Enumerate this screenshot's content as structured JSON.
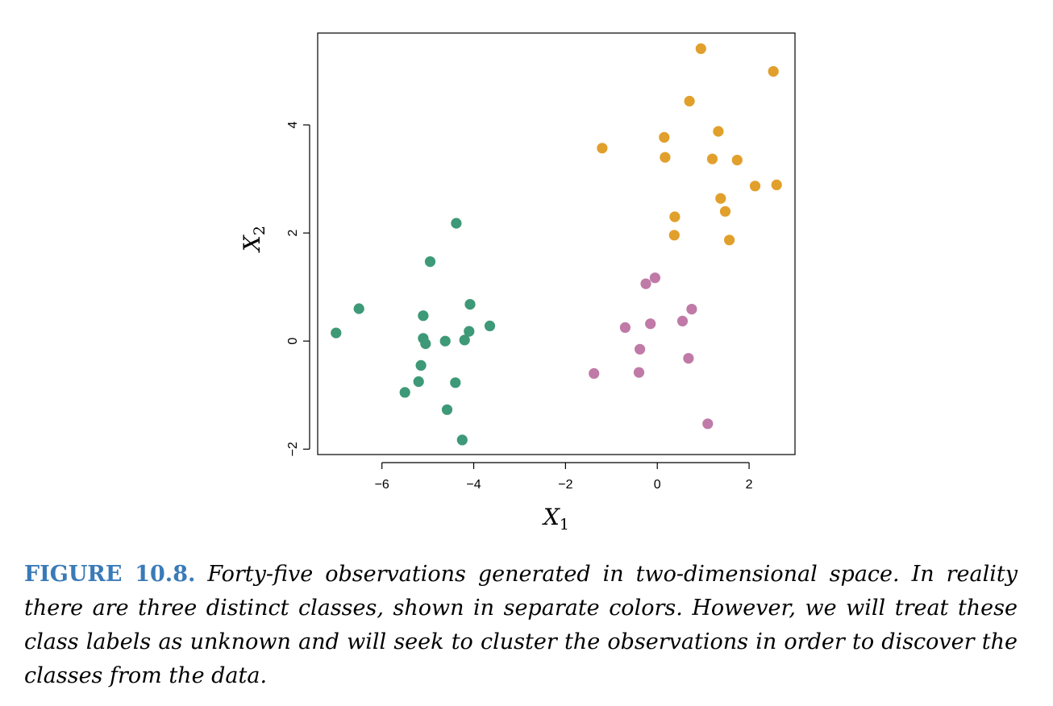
{
  "figure": {
    "label": "FIGURE 10.8.",
    "caption": "Forty-five observations generated in two-dimensional space. In reality there are three distinct classes, shown in separate colors. However, we will treat these class labels as unknown and will seek to cluster the observations in order to discover the classes from the data."
  },
  "chart_data": {
    "type": "scatter",
    "title": "",
    "xlabel": "X",
    "xlabel_sub": "1",
    "ylabel": "X",
    "ylabel_sub": "2",
    "xlim": [
      -7.4,
      3.0
    ],
    "ylim": [
      -2.1,
      5.7
    ],
    "xticks": [
      -6,
      -4,
      -2,
      0,
      2
    ],
    "xtick_labels": [
      "−6",
      "−4",
      "−2",
      "0",
      "2"
    ],
    "yticks": [
      -2,
      0,
      2,
      4
    ],
    "ytick_labels": [
      "−2",
      "0",
      "2",
      "4"
    ],
    "grid": false,
    "legend": "none",
    "series": [
      {
        "color": "#3d9977",
        "points": [
          [
            -7.0,
            0.15
          ],
          [
            -6.5,
            0.6
          ],
          [
            -5.5,
            -0.95
          ],
          [
            -5.2,
            -0.75
          ],
          [
            -5.15,
            -0.45
          ],
          [
            -5.1,
            0.05
          ],
          [
            -5.05,
            -0.05
          ],
          [
            -5.1,
            0.47
          ],
          [
            -4.95,
            1.47
          ],
          [
            -4.62,
            0.0
          ],
          [
            -4.58,
            -1.27
          ],
          [
            -4.4,
            -0.77
          ],
          [
            -4.38,
            2.18
          ],
          [
            -4.25,
            -1.83
          ],
          [
            -4.2,
            0.02
          ],
          [
            -4.1,
            0.18
          ],
          [
            -4.08,
            0.68
          ],
          [
            -3.65,
            0.28
          ]
        ]
      },
      {
        "color": "#e19f2b",
        "points": [
          [
            -1.2,
            3.57
          ],
          [
            0.15,
            3.77
          ],
          [
            0.17,
            3.4
          ],
          [
            0.38,
            2.3
          ],
          [
            0.37,
            1.96
          ],
          [
            0.7,
            4.44
          ],
          [
            0.95,
            5.41
          ],
          [
            1.2,
            3.37
          ],
          [
            1.33,
            3.88
          ],
          [
            1.38,
            2.64
          ],
          [
            1.48,
            2.4
          ],
          [
            1.57,
            1.87
          ],
          [
            1.74,
            3.35
          ],
          [
            2.13,
            2.87
          ],
          [
            2.53,
            4.99
          ],
          [
            2.6,
            2.89
          ]
        ]
      },
      {
        "color": "#c07aa7",
        "points": [
          [
            -1.38,
            -0.6
          ],
          [
            -0.7,
            0.25
          ],
          [
            -0.4,
            -0.58
          ],
          [
            -0.38,
            -0.15
          ],
          [
            -0.25,
            1.06
          ],
          [
            -0.15,
            0.32
          ],
          [
            -0.05,
            1.17
          ],
          [
            0.55,
            0.37
          ],
          [
            0.68,
            -0.32
          ],
          [
            0.75,
            0.59
          ],
          [
            1.1,
            -1.53
          ]
        ]
      }
    ]
  }
}
